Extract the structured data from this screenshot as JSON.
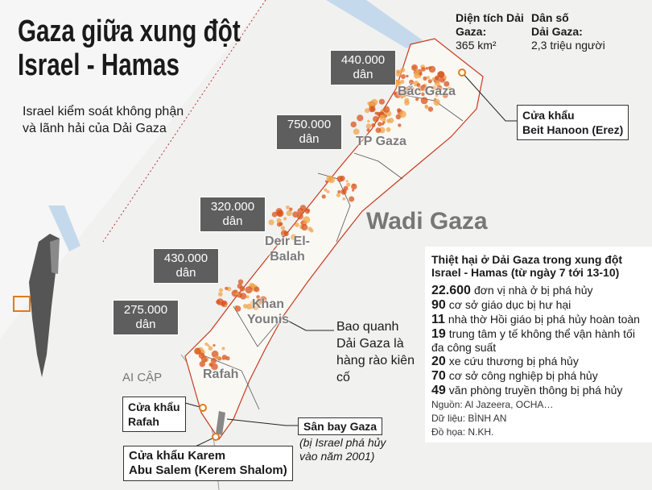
{
  "header": {
    "title_lines": [
      "Gaza giữa xung đột",
      "Israel - Hamas"
    ],
    "note": "Israel kiểm soát không phận và lãnh hải của Dải Gaza"
  },
  "stats": [
    {
      "label": "Diện tích Dải Gaza:",
      "value": "365 km²"
    },
    {
      "label": "Dân số Dải Gaza:",
      "value": "2,3 triệu người"
    }
  ],
  "areas": [
    {
      "name": "Bắc Gaza",
      "population": "440.000",
      "unit": "dân"
    },
    {
      "name": "TP Gaza",
      "population": "750.000",
      "unit": "dân"
    },
    {
      "name": "Deir El-Balah",
      "population": "320.000",
      "unit": "dân"
    },
    {
      "name": "Khan Younis",
      "population": "430.000",
      "unit": "dân"
    },
    {
      "name": "Rafah",
      "population": "275.000",
      "unit": "dân"
    }
  ],
  "map_labels": {
    "wadi": "Wadi Gaza",
    "egypt": "AI CẬP",
    "fence": "Bao quanh Dải Gaza là hàng rào kiên cố"
  },
  "crossings": [
    {
      "lines": [
        "Cửa khẩu",
        "Beit Hanoon (Erez)"
      ]
    },
    {
      "lines": [
        "Cửa khẩu",
        "Rafah"
      ]
    },
    {
      "lines": [
        "Cửa khẩu Karem",
        "Abu Salem (Kerem Shalom)"
      ]
    }
  ],
  "airport": {
    "name": "Sân bay Gaza",
    "note": "(bị Israel phá hủy vào năm 2001)"
  },
  "damage": {
    "title": "Thiệt hại ở Dải Gaza trong xung đột Israel - Hamas (từ ngày 7 tới 13-10)",
    "items": [
      {
        "number": "22.600",
        "text": "đơn vị nhà ở bị phá hủy"
      },
      {
        "number": "90",
        "text": "cơ sở giáo dục bị hư hại"
      },
      {
        "number": "11",
        "text": "nhà thờ Hồi giáo bị phá hủy hoàn toàn"
      },
      {
        "number": "19",
        "text": "trung tâm y tế không thể vận hành tối đa công suất"
      },
      {
        "number": "20",
        "text": "xe cứu thương bị phá hủy"
      },
      {
        "number": "70",
        "text": "cơ sở công nghiệp bị phá hủy"
      },
      {
        "number": "49",
        "text": "văn phòng truyền thông bị phá hủy"
      }
    ],
    "source": "Nguồn: Al Jazeera, OCHA…",
    "data": "Dữ liệu: BÌNH AN",
    "graphics": "Đồ họa: N.KH."
  }
}
